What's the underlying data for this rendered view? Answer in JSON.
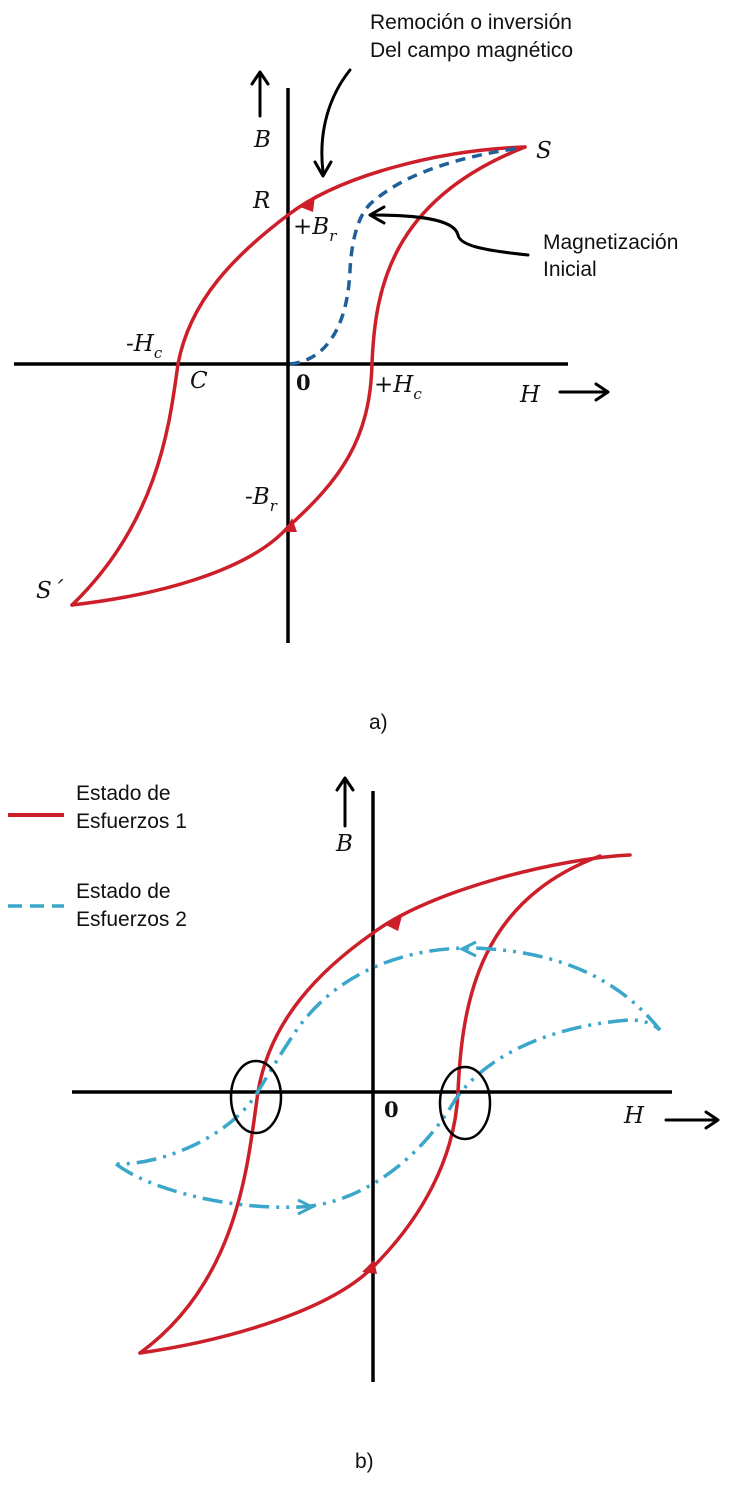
{
  "panel_a": {
    "caption": "a)",
    "annotation_top_line1": "Remoción o inversión",
    "annotation_top_line2": "Del campo magnético",
    "annotation_right_line1": "Magnetización",
    "annotation_right_line2": "Inicial",
    "label_B": "B",
    "label_H": "H",
    "label_S": "S",
    "label_S_prime": "S´",
    "label_R": "R",
    "label_C": "C",
    "label_zero": "0",
    "label_plus_Br": "+B",
    "label_plus_Br_sub": "r",
    "label_minus_Br": "-B",
    "label_minus_Br_sub": "r",
    "label_minus_Hc": "-H",
    "label_minus_Hc_sub": "c",
    "label_plus_Hc": "+H",
    "label_plus_Hc_sub": "c"
  },
  "panel_b": {
    "caption": "b)",
    "legend_1_line1": "Estado de",
    "legend_1_line2": "Esfuerzos 1",
    "legend_2_line1": "Estado de",
    "legend_2_line2": "Esfuerzos 2",
    "label_B": "B",
    "label_H": "H",
    "label_zero": "0"
  },
  "colors": {
    "loop_red": "#cc1f2a",
    "initial_magnetization_blue": "#1f5f9a",
    "state2_cyan": "#3aa6c9"
  }
}
